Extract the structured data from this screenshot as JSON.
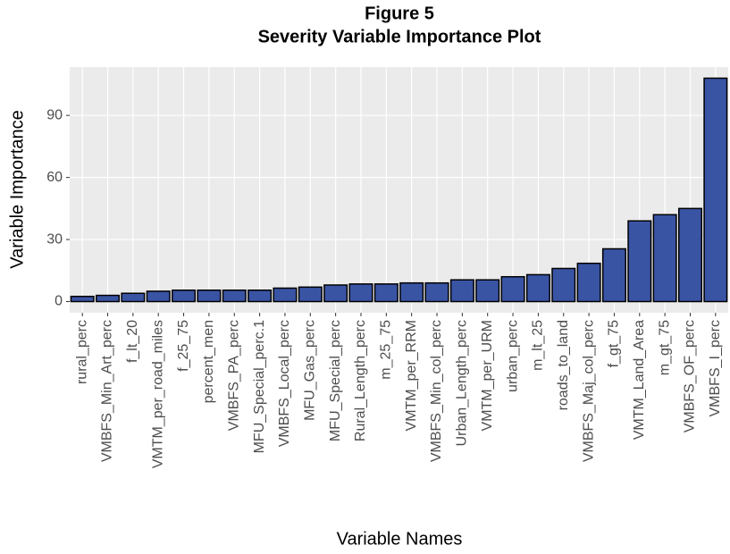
{
  "chart_data": {
    "type": "bar",
    "title": "Figure 5",
    "subtitle": "Severity Variable Importance Plot",
    "x_label": "Variable Names",
    "y_label": "Variable Importance",
    "categories": [
      "rural_perc",
      "VMBFS_Min_Art_perc",
      "f_lt_20",
      "VMTM_per_road_miles",
      "f_25_75",
      "percent_men",
      "VMBFS_PA_perc",
      "MFU_Special_perc.1",
      "VMBFS_Local_perc",
      "MFU_Gas_perc",
      "MFU_Special_perc",
      "Rural_Length_perc",
      "m_25_75",
      "VMTM_per_RRM",
      "VMBFS_Min_col_perc",
      "Urban_Length_perc",
      "VMTM_per_URM",
      "urban_perc",
      "m_lt_25",
      "roads_to_land",
      "VMBFS_Maj_col_perc",
      "f_gt_75",
      "VMTM_Land_Area",
      "m_gt_75",
      "VMBFS_OF_perc",
      "VMBFS_I_perc"
    ],
    "values": [
      2.5,
      3,
      4,
      5,
      5.5,
      5.5,
      5.5,
      5.5,
      6.5,
      7,
      8,
      8.5,
      8.5,
      9,
      9,
      10.5,
      10.5,
      12,
      13,
      16,
      18.5,
      25.5,
      39,
      42,
      45,
      108
    ],
    "color": "#3a54a4",
    "ylim": [
      -5.4,
      113.4
    ],
    "yticks": [
      0,
      30,
      60,
      90
    ],
    "grid": true
  }
}
